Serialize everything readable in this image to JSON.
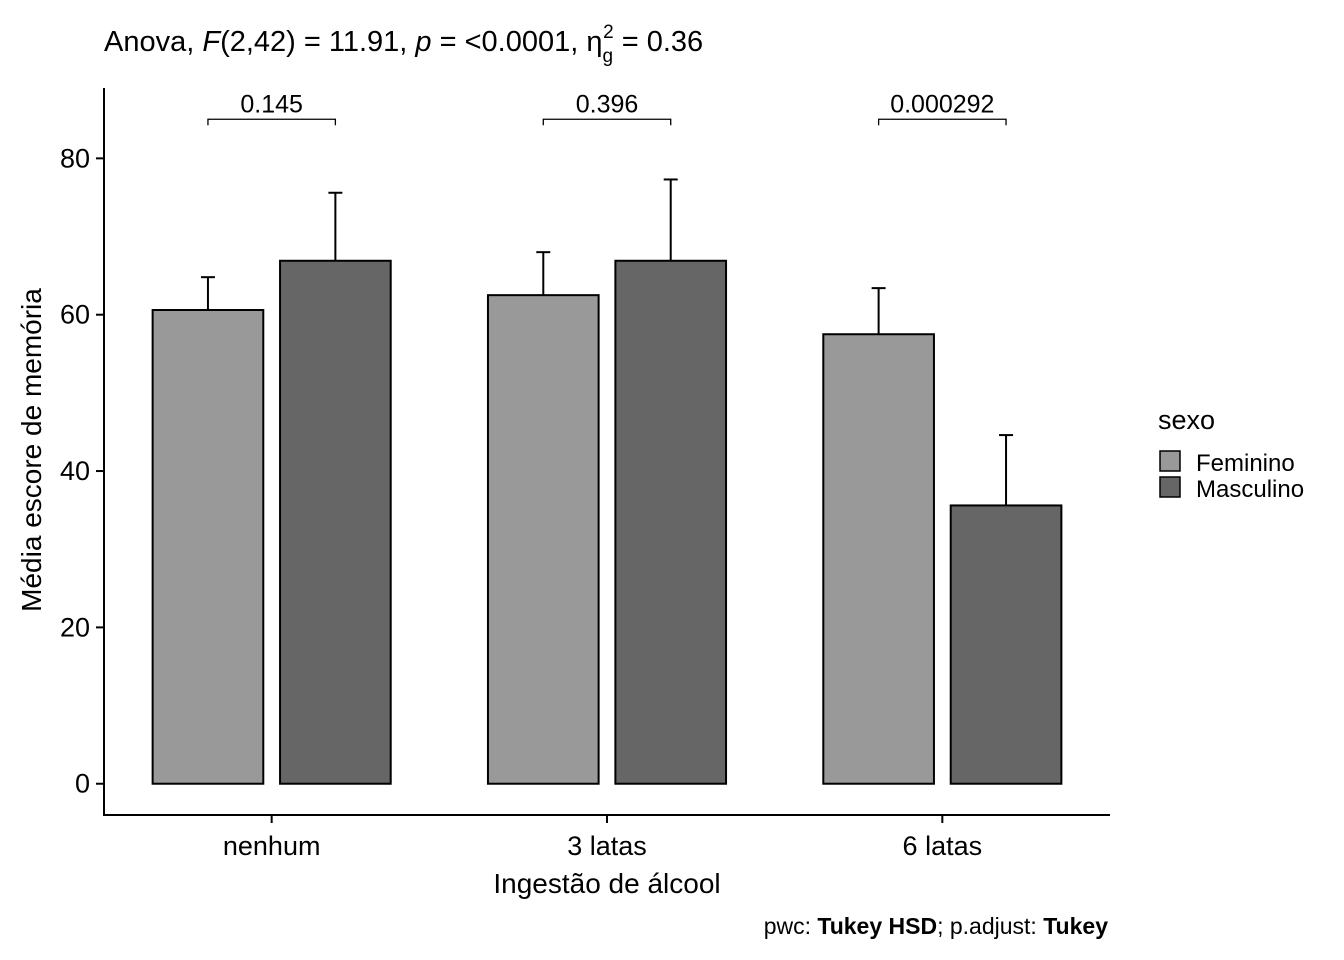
{
  "chart_data": {
    "type": "bar",
    "title": {
      "prefix": "Anova, ",
      "stat_name": "F",
      "stat_args": "(2,42) = 11.91, ",
      "p_name": "p",
      "p_value": " = <0.0001, ",
      "effect_symbol": "η",
      "effect_sub": "g",
      "effect_sup": "2",
      "effect_value": " = 0.36"
    },
    "xlabel": "Ingestão de álcool",
    "ylabel": "Média escore de memória",
    "categories": [
      "nenhum",
      "3 latas",
      "6 latas"
    ],
    "yticks": [
      0,
      20,
      40,
      60,
      80
    ],
    "ylim": [
      -4,
      89
    ],
    "series": [
      {
        "name": "Feminino",
        "color": "#999999",
        "values": [
          60.6,
          62.5,
          57.5
        ],
        "error_upper": [
          64.8,
          68.0,
          63.4
        ]
      },
      {
        "name": "Masculino",
        "color": "#666666",
        "values": [
          66.9,
          66.9,
          35.6
        ],
        "error_upper": [
          75.6,
          77.3,
          44.6
        ]
      }
    ],
    "pvalues": [
      {
        "category": "nenhum",
        "label": "0.145",
        "y": 85
      },
      {
        "category": "3 latas",
        "label": "0.396",
        "y": 85
      },
      {
        "category": "6 latas",
        "label": "0.000292",
        "y": 85
      }
    ],
    "legend": {
      "title": "sexo",
      "position": "right"
    },
    "caption": {
      "part1": "pwc: ",
      "part2": "Tukey HSD",
      "part3": "; p.adjust: ",
      "part4": "Tukey"
    },
    "grid": false
  }
}
